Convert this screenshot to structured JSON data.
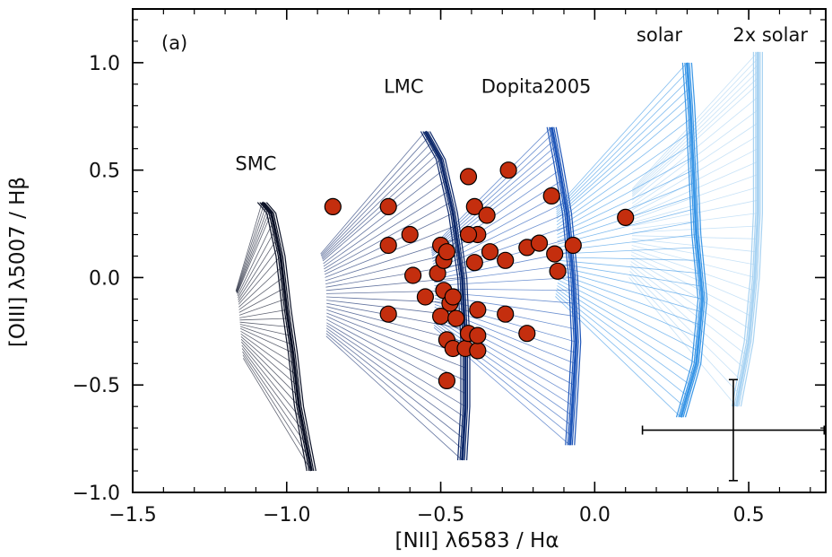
{
  "chart_data": {
    "type": "scatter",
    "panel_label": "(a)",
    "xlabel": "[NII] λ6583 / Hα",
    "ylabel": "[OIII] λ5007 / Hβ",
    "xlim": [
      -1.5,
      0.75
    ],
    "ylim": [
      -1.0,
      1.25
    ],
    "xticks": [
      -1.5,
      -1.0,
      -0.5,
      0.0,
      0.5
    ],
    "xtick_labels": [
      "−1.5",
      "−1.0",
      "−0.5",
      "0.0",
      "0.5"
    ],
    "yticks": [
      -1.0,
      -0.5,
      0.0,
      0.5,
      1.0
    ],
    "ytick_labels": [
      "−1.0",
      "−0.5",
      "0.0",
      "0.5",
      "1.0"
    ],
    "grid": false,
    "model_grids": [
      {
        "name": "SMC",
        "color": "#0b1126",
        "spine": [
          [
            -0.92,
            -0.9
          ],
          [
            -0.96,
            -0.6
          ],
          [
            -0.98,
            -0.35
          ],
          [
            -1.0,
            -0.15
          ],
          [
            -1.02,
            0.1
          ],
          [
            -1.05,
            0.3
          ],
          [
            -1.08,
            0.35
          ]
        ],
        "fan_end": [
          -1.18,
          -0.2
        ]
      },
      {
        "name": "LMC",
        "color": "#0f2a6b",
        "spine": [
          [
            -0.43,
            -0.85
          ],
          [
            -0.42,
            -0.6
          ],
          [
            -0.42,
            -0.3
          ],
          [
            -0.43,
            0.0
          ],
          [
            -0.46,
            0.3
          ],
          [
            -0.5,
            0.55
          ],
          [
            -0.55,
            0.68
          ]
        ],
        "fan_end": [
          -0.95,
          -0.08
        ]
      },
      {
        "name": "Dopita2005",
        "color": "#1f56b8",
        "spine": [
          [
            -0.08,
            -0.78
          ],
          [
            -0.07,
            -0.55
          ],
          [
            -0.06,
            -0.3
          ],
          [
            -0.07,
            0.0
          ],
          [
            -0.09,
            0.3
          ],
          [
            -0.12,
            0.55
          ],
          [
            -0.14,
            0.7
          ]
        ],
        "fan_end": [
          -0.6,
          -0.05
        ]
      },
      {
        "name": "solar",
        "color": "#3a96e6",
        "spine": [
          [
            0.28,
            -0.65
          ],
          [
            0.33,
            -0.4
          ],
          [
            0.35,
            -0.1
          ],
          [
            0.33,
            0.2
          ],
          [
            0.32,
            0.5
          ],
          [
            0.31,
            0.8
          ],
          [
            0.3,
            1.0
          ]
        ],
        "fan_end": [
          -0.2,
          0.1
        ]
      },
      {
        "name": "2x solar",
        "color": "#a9d3f2",
        "spine": [
          [
            0.46,
            -0.6
          ],
          [
            0.5,
            -0.3
          ],
          [
            0.52,
            0.0
          ],
          [
            0.53,
            0.3
          ],
          [
            0.53,
            0.6
          ],
          [
            0.53,
            0.9
          ],
          [
            0.53,
            1.05
          ]
        ],
        "fan_end": [
          0.05,
          0.2
        ]
      }
    ],
    "annotations": [
      {
        "text": "SMC",
        "x": -1.1,
        "y": 0.5
      },
      {
        "text": "LMC",
        "x": -0.62,
        "y": 0.86
      },
      {
        "text": "Dopita2005",
        "x": -0.19,
        "y": 0.86
      },
      {
        "text": "solar",
        "x": 0.21,
        "y": 1.1
      },
      {
        "text": "2x  solar",
        "x": 0.57,
        "y": 1.1
      }
    ],
    "error_bar": {
      "x": 0.45,
      "y": -0.71,
      "xerr": 0.295,
      "yerr": 0.235
    },
    "points_color": "#c42e0e",
    "points": [
      [
        -0.85,
        0.33
      ],
      [
        -0.67,
        0.33
      ],
      [
        -0.6,
        0.2
      ],
      [
        -0.67,
        0.15
      ],
      [
        -0.59,
        0.01
      ],
      [
        -0.67,
        -0.17
      ],
      [
        -0.55,
        -0.09
      ],
      [
        -0.5,
        0.15
      ],
      [
        -0.51,
        0.02
      ],
      [
        -0.49,
        0.08
      ],
      [
        -0.49,
        -0.06
      ],
      [
        -0.48,
        0.12
      ],
      [
        -0.47,
        -0.12
      ],
      [
        -0.46,
        -0.09
      ],
      [
        -0.5,
        -0.18
      ],
      [
        -0.45,
        -0.19
      ],
      [
        -0.48,
        -0.29
      ],
      [
        -0.46,
        -0.33
      ],
      [
        -0.42,
        -0.33
      ],
      [
        -0.38,
        -0.34
      ],
      [
        -0.41,
        -0.26
      ],
      [
        -0.38,
        -0.27
      ],
      [
        -0.48,
        -0.48
      ],
      [
        -0.41,
        0.47
      ],
      [
        -0.38,
        0.2
      ],
      [
        -0.41,
        0.2
      ],
      [
        -0.39,
        0.33
      ],
      [
        -0.35,
        0.29
      ],
      [
        -0.39,
        0.07
      ],
      [
        -0.34,
        0.12
      ],
      [
        -0.38,
        -0.15
      ],
      [
        -0.29,
        0.08
      ],
      [
        -0.28,
        0.5
      ],
      [
        -0.29,
        -0.17
      ],
      [
        -0.22,
        0.14
      ],
      [
        -0.18,
        0.16
      ],
      [
        -0.22,
        -0.26
      ],
      [
        -0.14,
        0.38
      ],
      [
        -0.13,
        0.11
      ],
      [
        -0.12,
        0.03
      ],
      [
        -0.07,
        0.15
      ],
      [
        0.1,
        0.28
      ]
    ]
  }
}
